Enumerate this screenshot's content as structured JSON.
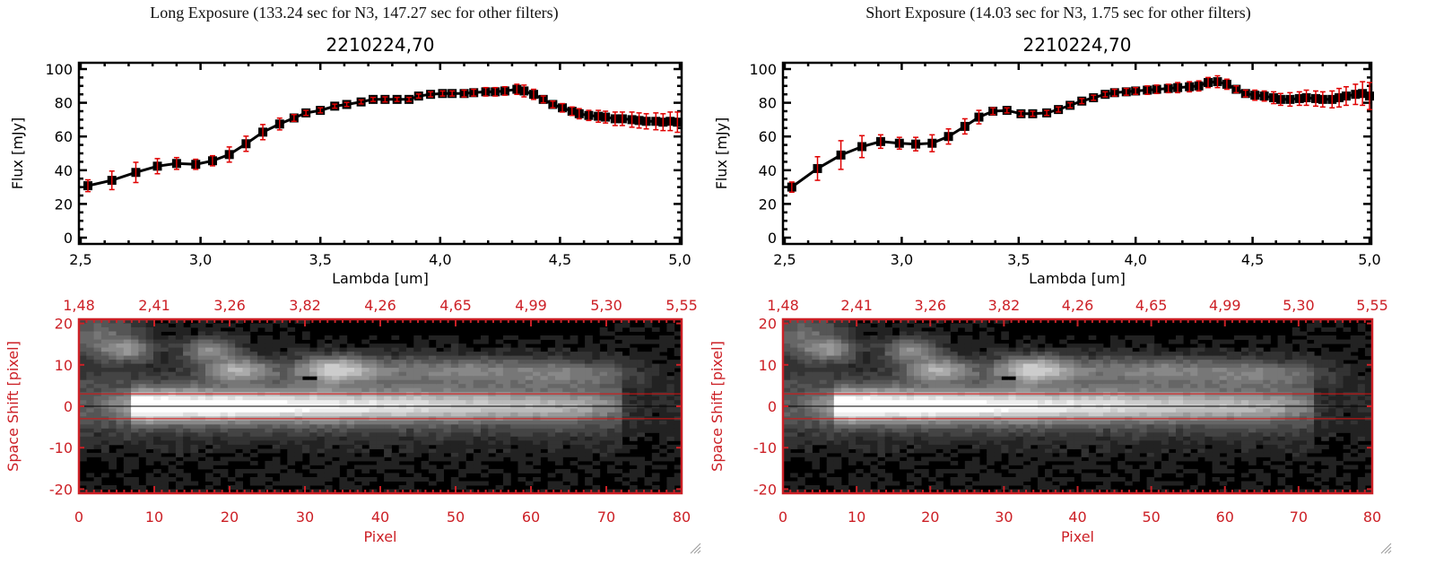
{
  "colors": {
    "axis": "#000000",
    "marker": "#000000",
    "errorbar": "#e00000",
    "image_axis": "#cc2026",
    "aperture_line": "#dd1111",
    "center_line": "#000000"
  },
  "chart_data": [
    {
      "type": "line",
      "panel": "left",
      "header": "Long Exposure (133.24 sec for N3, 147.27 sec for other filters)",
      "title": "2210224,70",
      "xlabel": "Lambda [um]",
      "ylabel": "Flux [mJy]",
      "xlim": [
        2.5,
        5.0
      ],
      "ylim": [
        0,
        100
      ],
      "xticks": [
        "2,5",
        "3,0",
        "3,5",
        "4,0",
        "4,5",
        "5,0"
      ],
      "yticks": [
        "0",
        "20",
        "40",
        "60",
        "80",
        "100"
      ],
      "series": [
        {
          "name": "flux",
          "x": [
            2.53,
            2.63,
            2.73,
            2.82,
            2.9,
            2.98,
            3.05,
            3.12,
            3.19,
            3.26,
            3.33,
            3.39,
            3.44,
            3.5,
            3.56,
            3.61,
            3.67,
            3.72,
            3.77,
            3.82,
            3.87,
            3.91,
            3.96,
            4.01,
            4.05,
            4.1,
            4.14,
            4.19,
            4.23,
            4.27,
            4.32,
            4.35,
            4.39,
            4.43,
            4.47,
            4.51,
            4.55,
            4.58,
            4.62,
            4.66,
            4.69,
            4.73,
            4.76,
            4.8,
            4.83,
            4.86,
            4.9,
            4.93,
            4.96,
            4.99
          ],
          "y": [
            30.8,
            34,
            38.7,
            42.4,
            44,
            43.5,
            45.6,
            49.3,
            55.7,
            62.6,
            67.4,
            71,
            74,
            75.5,
            78,
            79,
            80.5,
            82,
            82,
            82,
            82,
            84,
            85,
            85.5,
            85.5,
            85.5,
            86,
            86.5,
            86.5,
            87,
            88,
            87,
            85,
            82,
            79,
            77,
            75,
            73.5,
            72.5,
            72,
            71.5,
            70.5,
            70.5,
            70,
            69.5,
            69,
            69,
            68.5,
            69,
            68.5
          ],
          "err": [
            3.5,
            5.5,
            6,
            4.5,
            3.5,
            3,
            3,
            4.5,
            4.5,
            4.5,
            3.5,
            2,
            1.5,
            1.5,
            1.2,
            1.2,
            1.2,
            1.2,
            1.5,
            1.2,
            1.2,
            1.2,
            1.5,
            1.5,
            1.5,
            2,
            2,
            2.5,
            2.5,
            2.5,
            3,
            3.5,
            3,
            2,
            2,
            2.5,
            2.5,
            3,
            3,
            3.5,
            3.5,
            4,
            4,
            4.5,
            4.5,
            4.5,
            5,
            5,
            5.5,
            6
          ]
        }
      ]
    },
    {
      "type": "line",
      "panel": "right",
      "header": "Short Exposure (14.03 sec for N3, 1.75 sec for other filters)",
      "title": "2210224,70",
      "xlabel": "Lambda [um]",
      "ylabel": "Flux [mJy]",
      "xlim": [
        2.5,
        5.0
      ],
      "ylim": [
        0,
        100
      ],
      "xticks": [
        "2,5",
        "3,0",
        "3,5",
        "4,0",
        "4,5",
        "5,0"
      ],
      "yticks": [
        "0",
        "20",
        "40",
        "60",
        "80",
        "100"
      ],
      "series": [
        {
          "name": "flux",
          "x": [
            2.53,
            2.64,
            2.74,
            2.83,
            2.91,
            2.99,
            3.06,
            3.13,
            3.2,
            3.27,
            3.33,
            3.39,
            3.45,
            3.51,
            3.56,
            3.62,
            3.67,
            3.72,
            3.77,
            3.82,
            3.87,
            3.91,
            3.96,
            4.0,
            4.05,
            4.09,
            4.14,
            4.18,
            4.23,
            4.27,
            4.31,
            4.35,
            4.39,
            4.43,
            4.47,
            4.51,
            4.55,
            4.59,
            4.62,
            4.66,
            4.7,
            4.73,
            4.77,
            4.8,
            4.84,
            4.87,
            4.9,
            4.94,
            4.97,
            5.0
          ],
          "y": [
            30,
            41,
            49,
            54,
            57,
            56,
            55.5,
            56,
            60,
            66,
            71.5,
            75,
            75.5,
            73.5,
            73.5,
            74,
            76,
            78.5,
            81,
            83,
            85,
            86,
            86.5,
            87,
            87.5,
            88,
            88.5,
            89,
            89.5,
            90,
            92,
            92.5,
            91,
            88,
            85.5,
            84.5,
            84,
            83,
            82,
            82,
            82.5,
            83,
            82.5,
            82,
            82,
            83,
            84,
            85,
            85.5,
            84
          ],
          "err": [
            3,
            7,
            8.5,
            6.5,
            4,
            3.5,
            4,
            5,
            4.5,
            4.5,
            4,
            2,
            1.5,
            1.5,
            1.5,
            1.5,
            1.5,
            1.5,
            1.5,
            1.5,
            1.5,
            2,
            2,
            2,
            2.5,
            2.5,
            2.5,
            3,
            3,
            3,
            3,
            3.5,
            3,
            2,
            2,
            3,
            3,
            3.5,
            3.5,
            4,
            4,
            4.5,
            4.5,
            4.5,
            5,
            5.5,
            5.5,
            6,
            7,
            8
          ]
        }
      ]
    },
    {
      "type": "heatmap",
      "panel": "left-bottom",
      "xlabel": "Pixel",
      "ylabel": "Space Shift [pixel]",
      "xlim": [
        0,
        80
      ],
      "ylim": [
        -21,
        21
      ],
      "xticks": [
        "0",
        "10",
        "20",
        "30",
        "40",
        "50",
        "60",
        "70",
        "80"
      ],
      "yticks": [
        "-20",
        "-10",
        "0",
        "10",
        "20"
      ],
      "top_axis_ticks": [
        "1,48",
        "2,41",
        "3,26",
        "3,82",
        "4,26",
        "4,65",
        "4,99",
        "5,30",
        "5,55"
      ],
      "aperture_lines": [
        3,
        -3
      ],
      "center_line": 0,
      "colormap": "grayscale"
    },
    {
      "type": "heatmap",
      "panel": "right-bottom",
      "xlabel": "Pixel",
      "ylabel": "Space Shift [pixel]",
      "xlim": [
        0,
        80
      ],
      "ylim": [
        -21,
        21
      ],
      "xticks": [
        "0",
        "10",
        "20",
        "30",
        "40",
        "50",
        "60",
        "70",
        "80"
      ],
      "yticks": [
        "-20",
        "-10",
        "0",
        "10",
        "20"
      ],
      "top_axis_ticks": [
        "1,48",
        "2,41",
        "3,26",
        "3,82",
        "4,26",
        "4,65",
        "4,99",
        "5,30",
        "5,55"
      ],
      "aperture_lines": [
        3,
        -3
      ],
      "center_line": 0,
      "colormap": "grayscale"
    }
  ]
}
